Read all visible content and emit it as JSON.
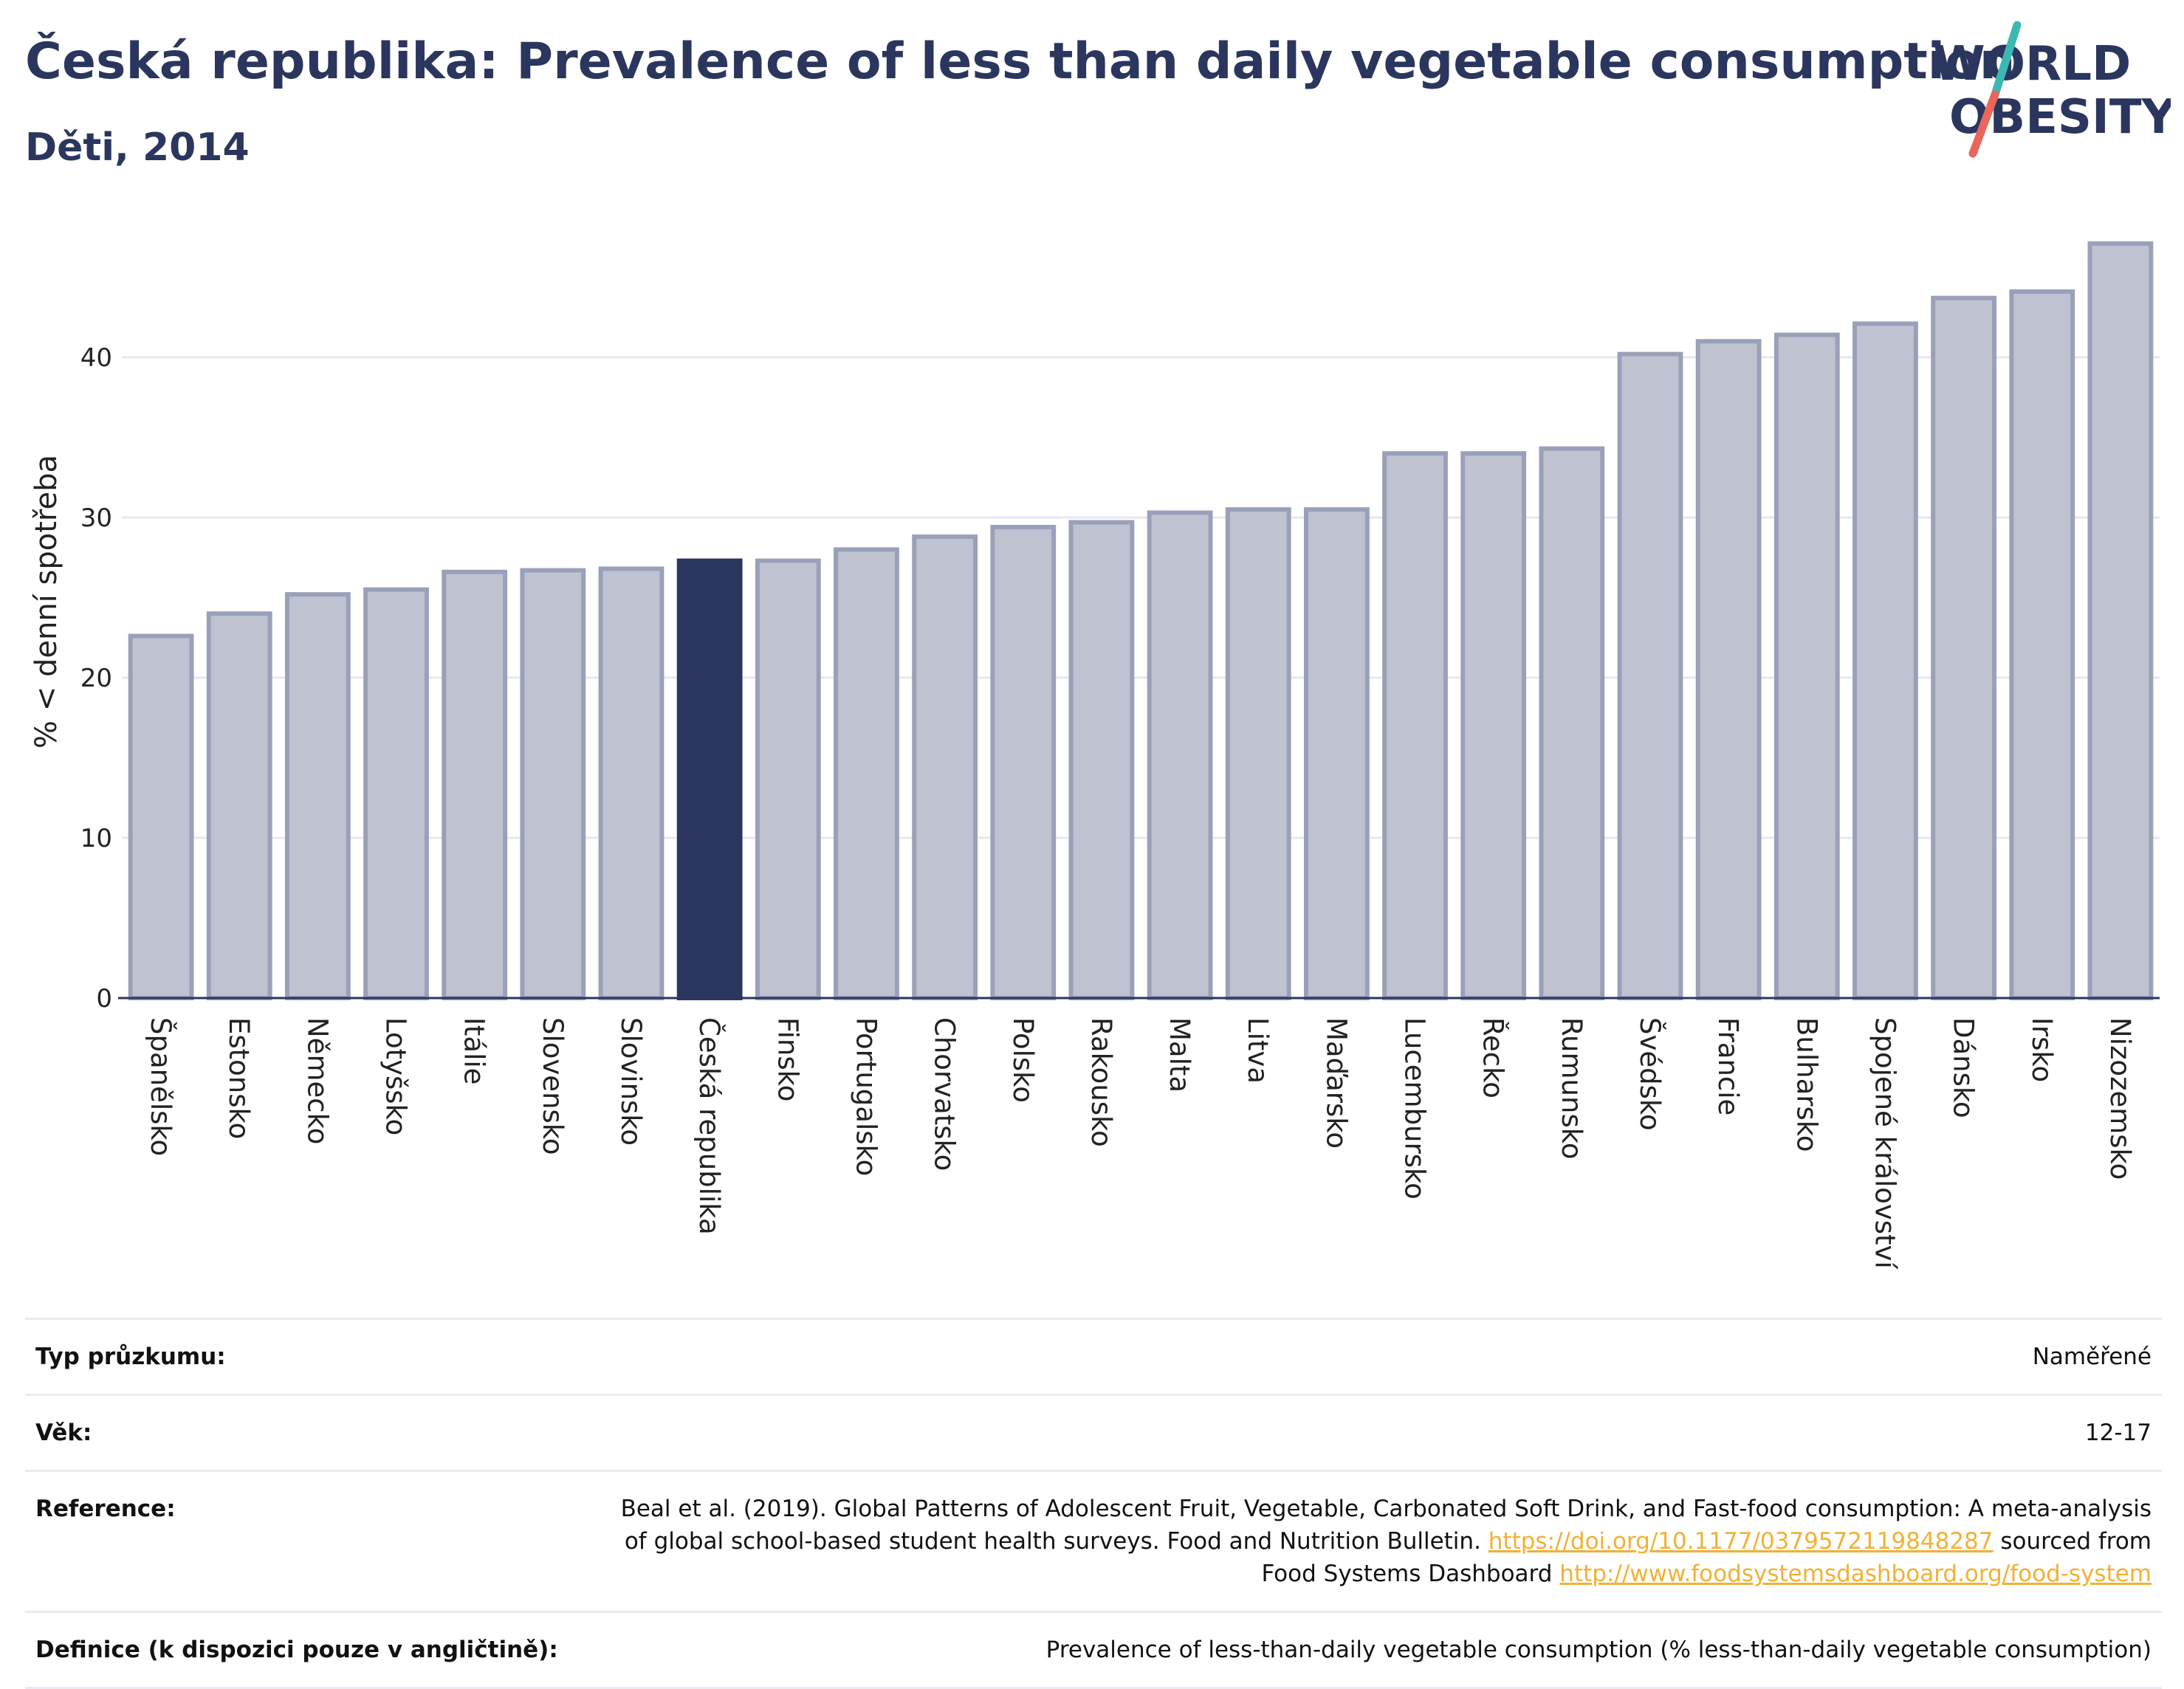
{
  "title": "Česká republika: Prevalence of less than daily vegetable consumption",
  "subtitle": "Děti, 2014",
  "logo": {
    "line1": "WORLD",
    "line2": "OBESITY",
    "colors": {
      "text": "#2b365e",
      "slash_top": "#3cb8b2",
      "slash_bottom": "#e8675a"
    }
  },
  "colors": {
    "bar": "#bfc3d1",
    "bar_border": "#9aa0b8",
    "highlight": "#2b365e",
    "grid": "#e6e8ef",
    "axis": "#2b365e"
  },
  "chart_data": {
    "type": "bar",
    "ylabel": "% < denní spotřeba",
    "ylim": [
      0,
      50
    ],
    "yticks": [
      0,
      10,
      20,
      30,
      40
    ],
    "grid": true,
    "highlight": "Česká republika",
    "categories": [
      "Španělsko",
      "Estonsko",
      "Německo",
      "Lotyšsko",
      "Itálie",
      "Slovensko",
      "Slovinsko",
      "Česká republika",
      "Finsko",
      "Portugalsko",
      "Chorvatsko",
      "Polsko",
      "Rakousko",
      "Malta",
      "Litva",
      "Maďarsko",
      "Lucembursko",
      "Řecko",
      "Rumunsko",
      "Švédsko",
      "Francie",
      "Bulharsko",
      "Spojené království",
      "Dánsko",
      "Irsko",
      "Nizozemsko"
    ],
    "values": [
      22.6,
      24.0,
      25.2,
      25.5,
      26.6,
      26.7,
      26.8,
      27.3,
      27.3,
      28.0,
      28.8,
      29.4,
      29.7,
      30.3,
      30.5,
      30.5,
      34.0,
      34.0,
      34.3,
      40.2,
      41.0,
      41.4,
      42.1,
      43.7,
      44.1,
      47.1
    ]
  },
  "meta": [
    {
      "key": "Typ průzkumu:",
      "value": "Naměřené"
    },
    {
      "key": "Věk:",
      "value": "12-17"
    },
    {
      "key": "Reference:",
      "value": "Beal et al. (2019). Global Patterns of Adolescent Fruit, Vegetable, Carbonated Soft Drink, and Fast-food consumption: A meta-analysis of global school-based student health surveys. Food and Nutrition Bulletin.",
      "link1": "https://doi.org/10.1177/0379572119848287",
      "mid": "sourced from Food Systems Dashboard",
      "link2": "http://www.foodsystemsdashboard.org/food-system"
    },
    {
      "key": "Definice (k dispozici pouze v angličtině):",
      "value": "Prevalence of less-than-daily vegetable consumption (% less-than-daily vegetable consumption)"
    }
  ]
}
